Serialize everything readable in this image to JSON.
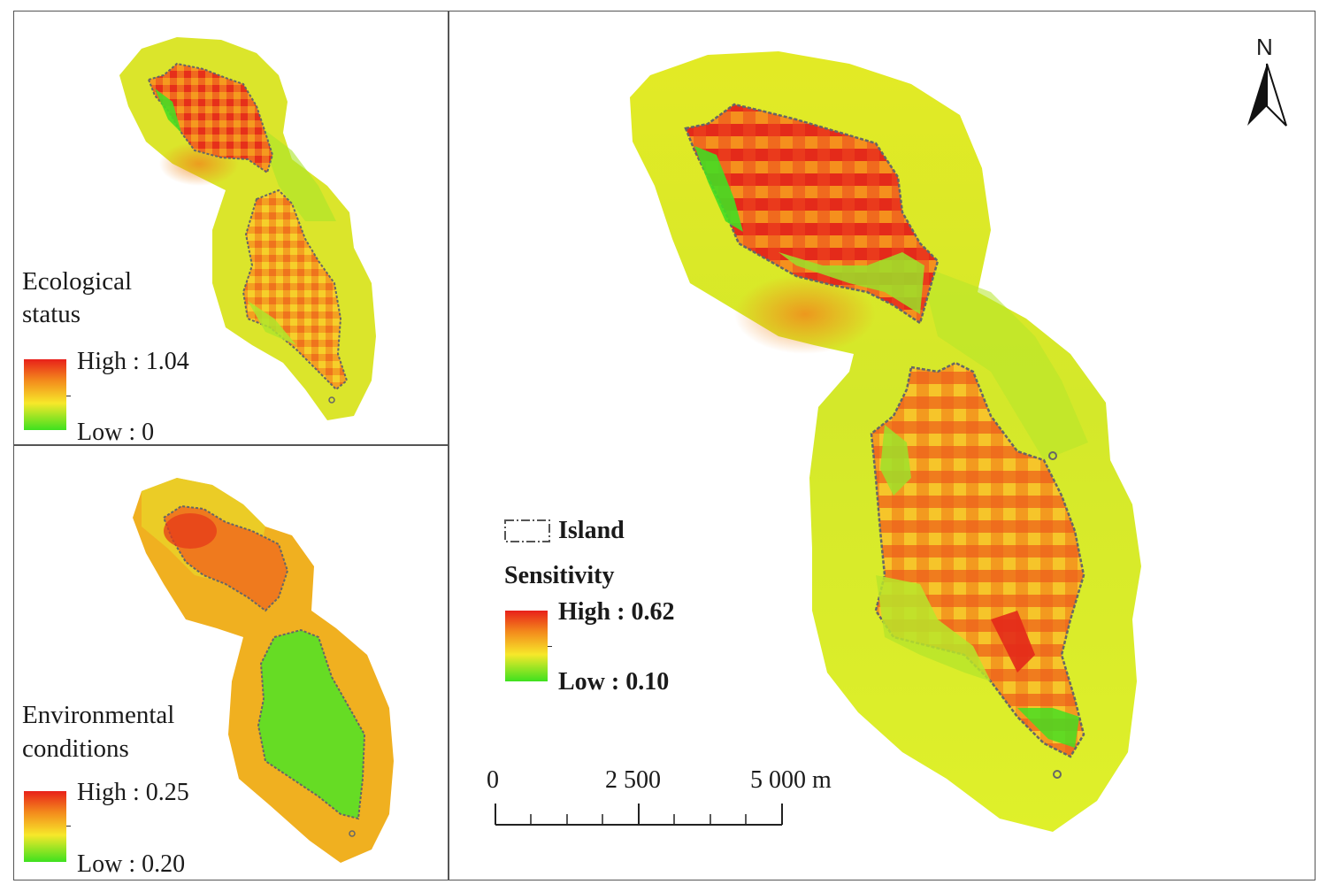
{
  "panels": {
    "ecological": {
      "title_line1": "Ecological",
      "title_line2": "status",
      "high": "High : 1.04",
      "low": "Low : 0"
    },
    "environmental": {
      "title_line1": "Environmental",
      "title_line2": "conditions",
      "high": "High : 0.25",
      "low": "Low : 0.20"
    },
    "main": {
      "island_label": "Island",
      "sensitivity_title": "Sensitivity",
      "high": "High : 0.62",
      "low": "Low : 0.10",
      "north": "N",
      "scale": {
        "labels": [
          "0",
          "2 500",
          "5 000 m"
        ],
        "values": [
          0,
          2500,
          5000
        ],
        "unit": "m"
      }
    }
  },
  "colors": {
    "high": "#e8201a",
    "mid_high": "#f38a1c",
    "mid": "#f7e82a",
    "low": "#3ee11f",
    "outline": "#666666"
  }
}
